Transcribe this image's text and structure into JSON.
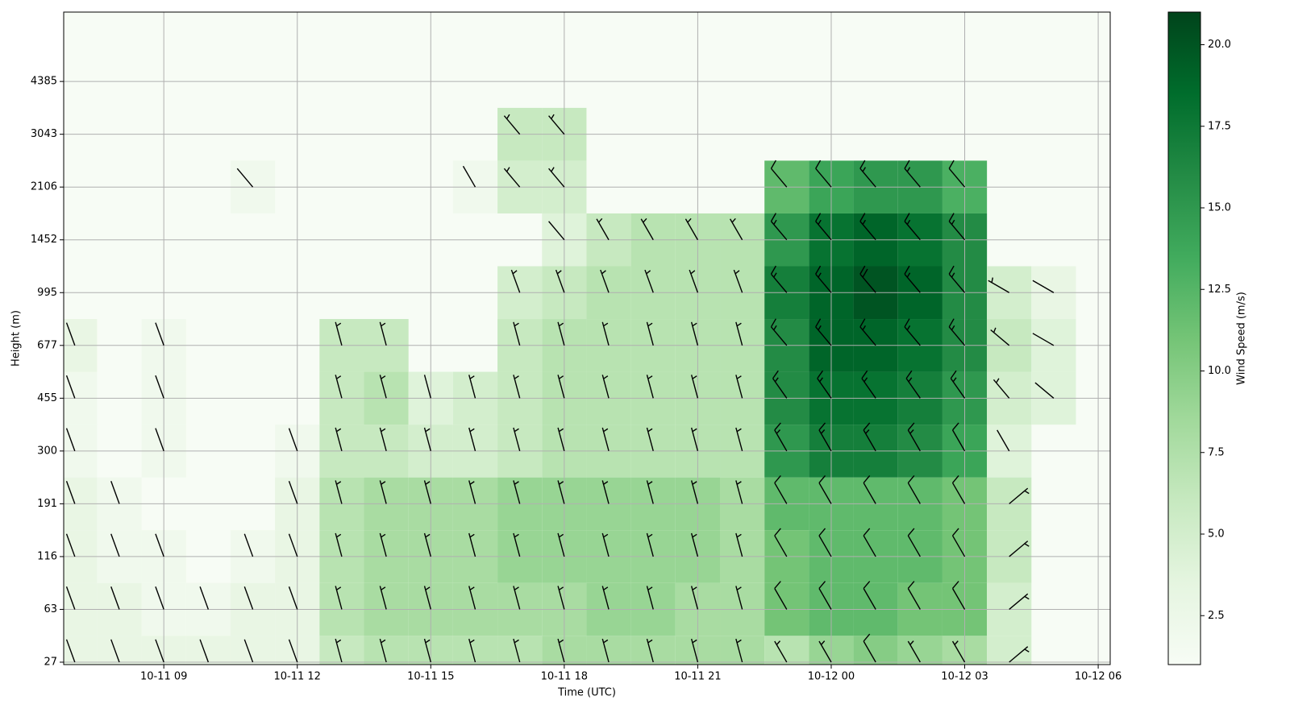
{
  "chart_data": {
    "type": "heatmap-barbs",
    "xlabel": "Time (UTC)",
    "ylabel": "Height (m)",
    "colorbar_label": "Wind Speed (m/s)",
    "colormap": "Greens",
    "grid": true,
    "x": [
      7,
      8,
      9,
      10,
      11,
      12,
      13,
      14,
      15,
      16,
      17,
      18,
      19,
      20,
      21,
      22,
      23,
      24,
      25,
      26,
      27,
      28,
      29
    ],
    "xlim": [
      6.75,
      30.27
    ],
    "xticks": [
      {
        "value": 9,
        "label": "10-11 09"
      },
      {
        "value": 12,
        "label": "10-11 12"
      },
      {
        "value": 15,
        "label": "10-11 15"
      },
      {
        "value": 18,
        "label": "10-11 18"
      },
      {
        "value": 21,
        "label": "10-11 21"
      },
      {
        "value": 24,
        "label": "10-12 00"
      },
      {
        "value": 27,
        "label": "10-12 03"
      },
      {
        "value": 30,
        "label": "10-12 06"
      }
    ],
    "y": [
      27,
      63,
      116,
      191,
      300,
      455,
      677,
      995,
      1452,
      2106,
      3043,
      4385
    ],
    "clim": [
      1,
      21
    ],
    "cticks": [
      2.5,
      {
        "value": 5,
        "label": "5.0"
      },
      7.5,
      {
        "value": 10,
        "label": "10.0"
      },
      12.5,
      {
        "value": 15,
        "label": "15.0"
      },
      17.5,
      {
        "value": 20,
        "label": "20.0"
      }
    ],
    "speed": [
      [
        3,
        3,
        3,
        3,
        3,
        3,
        6,
        7,
        7,
        7,
        7,
        8,
        8,
        8,
        8,
        8,
        7,
        9,
        10,
        9,
        8,
        5,
        null
      ],
      [
        3,
        3,
        2,
        2,
        3,
        3,
        7,
        8,
        8,
        8,
        8,
        8,
        9,
        9,
        8,
        8,
        11,
        12,
        12,
        11,
        11,
        5,
        null
      ],
      [
        3,
        2,
        2,
        null,
        2,
        3,
        7,
        8,
        8,
        8,
        9,
        9,
        9,
        9,
        9,
        8,
        11,
        12,
        12,
        12,
        11,
        6,
        null
      ],
      [
        3,
        2,
        null,
        null,
        null,
        3,
        7,
        8,
        8,
        8,
        9,
        9,
        9,
        9,
        9,
        8,
        12,
        12,
        12,
        12,
        11,
        6,
        null
      ],
      [
        2,
        null,
        2,
        null,
        null,
        2,
        6,
        6,
        5,
        5,
        6,
        7,
        7,
        7,
        7,
        7,
        15,
        17,
        17,
        16,
        14,
        4,
        null
      ],
      [
        2,
        null,
        2,
        null,
        null,
        null,
        6,
        7,
        4,
        5,
        6,
        7,
        7,
        7,
        7,
        7,
        16,
        18,
        18,
        17,
        15,
        5,
        4
      ],
      [
        3,
        null,
        2,
        null,
        null,
        null,
        6,
        6,
        null,
        null,
        6,
        7,
        7,
        7,
        7,
        7,
        16,
        19,
        19,
        18,
        16,
        6,
        4
      ],
      [
        null,
        null,
        null,
        null,
        null,
        null,
        null,
        null,
        null,
        null,
        5,
        6,
        7,
        7,
        7,
        7,
        17,
        19,
        20,
        19,
        16,
        5,
        3
      ],
      [
        null,
        null,
        null,
        null,
        null,
        null,
        null,
        null,
        null,
        null,
        null,
        4,
        6,
        7,
        7,
        7,
        15,
        18,
        19,
        18,
        16,
        null,
        null
      ],
      [
        null,
        null,
        null,
        null,
        2,
        null,
        null,
        null,
        null,
        2,
        5,
        5,
        null,
        null,
        null,
        null,
        12,
        14,
        15,
        15,
        13,
        null,
        null
      ],
      [
        null,
        null,
        null,
        null,
        null,
        null,
        null,
        null,
        null,
        null,
        6,
        6,
        null,
        null,
        null,
        null,
        null,
        null,
        null,
        null,
        null,
        null,
        null
      ],
      [
        null,
        null,
        null,
        null,
        null,
        null,
        null,
        null,
        null,
        null,
        null,
        null,
        null,
        null,
        null,
        null,
        null,
        null,
        null,
        null,
        null,
        null,
        null
      ]
    ],
    "direction": [
      [
        340,
        340,
        340,
        340,
        340,
        340,
        345,
        345,
        345,
        345,
        345,
        345,
        345,
        345,
        345,
        345,
        330,
        330,
        330,
        330,
        330,
        50,
        null
      ],
      [
        340,
        340,
        340,
        340,
        340,
        340,
        345,
        345,
        345,
        345,
        345,
        345,
        345,
        345,
        345,
        345,
        330,
        330,
        330,
        330,
        330,
        50,
        null
      ],
      [
        340,
        340,
        340,
        null,
        340,
        340,
        345,
        345,
        345,
        345,
        345,
        345,
        345,
        345,
        345,
        345,
        330,
        330,
        330,
        330,
        330,
        50,
        null
      ],
      [
        340,
        340,
        null,
        null,
        null,
        340,
        345,
        345,
        345,
        345,
        345,
        345,
        345,
        345,
        345,
        345,
        330,
        330,
        330,
        330,
        330,
        50,
        null
      ],
      [
        340,
        null,
        340,
        null,
        null,
        340,
        345,
        345,
        345,
        345,
        345,
        345,
        345,
        345,
        345,
        345,
        330,
        330,
        330,
        330,
        330,
        330,
        null
      ],
      [
        340,
        null,
        340,
        null,
        null,
        null,
        345,
        345,
        345,
        345,
        345,
        345,
        345,
        345,
        345,
        345,
        325,
        325,
        325,
        325,
        325,
        320,
        310
      ],
      [
        340,
        null,
        340,
        null,
        null,
        null,
        345,
        345,
        null,
        null,
        345,
        345,
        345,
        345,
        345,
        345,
        320,
        320,
        320,
        320,
        320,
        310,
        300
      ],
      [
        null,
        null,
        null,
        null,
        null,
        null,
        null,
        null,
        null,
        null,
        340,
        340,
        340,
        340,
        340,
        340,
        320,
        320,
        320,
        320,
        320,
        300,
        300
      ],
      [
        null,
        null,
        null,
        null,
        null,
        null,
        null,
        null,
        null,
        null,
        null,
        320,
        330,
        330,
        330,
        330,
        320,
        320,
        320,
        320,
        320,
        null,
        null
      ],
      [
        null,
        null,
        null,
        null,
        320,
        null,
        null,
        null,
        null,
        330,
        320,
        320,
        null,
        null,
        null,
        null,
        320,
        320,
        320,
        320,
        320,
        null,
        null
      ],
      [
        null,
        null,
        null,
        null,
        null,
        null,
        null,
        null,
        null,
        null,
        320,
        320,
        null,
        null,
        null,
        null,
        null,
        null,
        null,
        null,
        null,
        null,
        null
      ],
      [
        null,
        null,
        null,
        null,
        null,
        null,
        null,
        null,
        null,
        null,
        null,
        null,
        null,
        null,
        null,
        null,
        null,
        null,
        null,
        null,
        null,
        null,
        null
      ]
    ]
  }
}
